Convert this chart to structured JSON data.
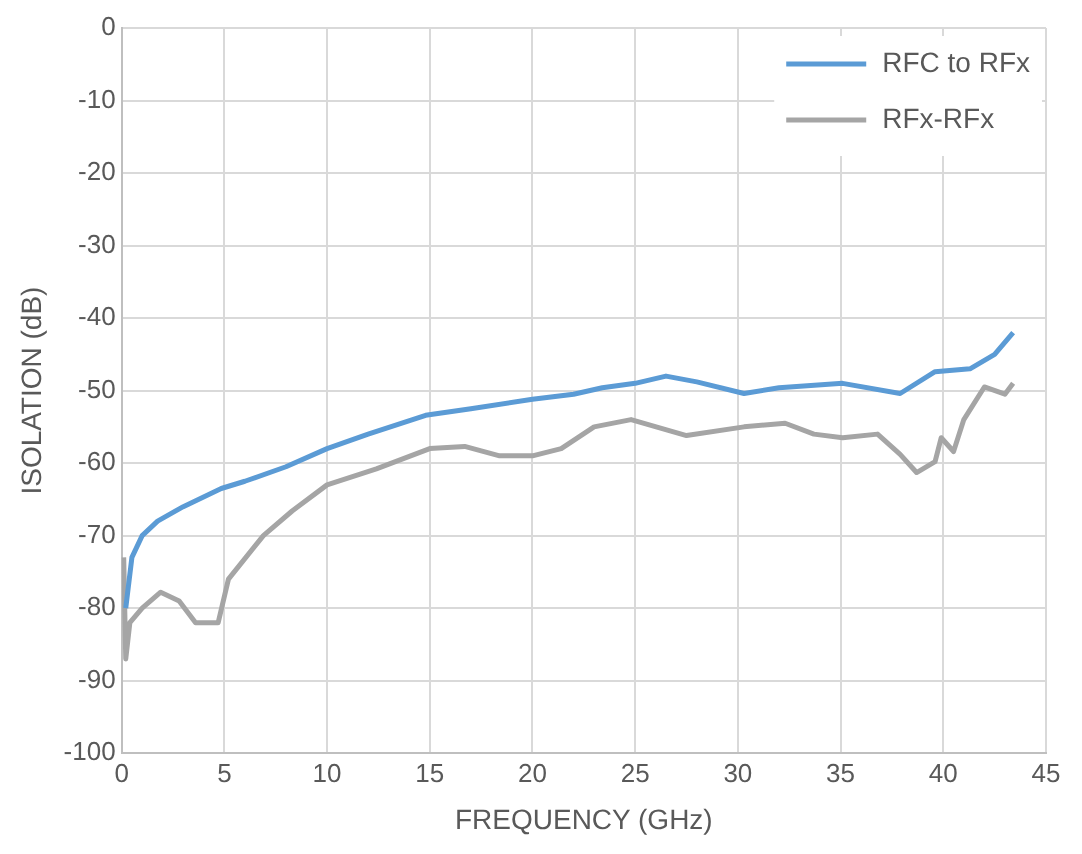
{
  "chart_data": {
    "type": "line",
    "xlabel": "FREQUENCY (GHz)",
    "ylabel": "ISOLATION (dB)",
    "xlim": [
      0,
      45
    ],
    "xticks": [
      0,
      5,
      10,
      15,
      20,
      25,
      30,
      35,
      40,
      45
    ],
    "ylim": [
      -100,
      0
    ],
    "yticks": [
      -100,
      -90,
      -80,
      -70,
      -60,
      -50,
      -40,
      -30,
      -20,
      -10,
      0
    ],
    "grid": true,
    "legend": "top right",
    "line_style": "solid",
    "marker": "none",
    "series": [
      {
        "name": "RFC to RFx",
        "color": "#5b9bd5",
        "x": [
          0.2,
          0.5,
          1,
          1.75,
          3,
          4.85,
          6,
          8,
          10,
          12,
          14.8,
          17,
          20,
          22,
          23.4,
          25,
          26.5,
          28,
          30.3,
          32,
          35.1,
          37.9,
          39.6,
          41.3,
          42.5,
          43.4
        ],
        "values": [
          -80,
          -73,
          -70,
          -68,
          -66,
          -63.5,
          -62.5,
          -60.5,
          -58,
          -56,
          -53.4,
          -52.5,
          -51.2,
          -50.5,
          -49.6,
          -49,
          -48,
          -48.8,
          -50.4,
          -49.6,
          -49,
          -50.4,
          -47.4,
          -47,
          -45,
          -42
        ]
      },
      {
        "name": "RFx-RFx",
        "color": "#a5a5a5",
        "x": [
          0.1,
          0.2,
          0.4,
          1,
          1.9,
          2.8,
          3.6,
          4.7,
          5.2,
          6.9,
          8.3,
          10,
          12.4,
          15,
          16.7,
          18.4,
          20,
          21.4,
          23,
          24.8,
          27.5,
          30.3,
          32.3,
          33.7,
          35.1,
          36.8,
          37.9,
          38.7,
          39.6,
          39.9,
          40.5,
          41,
          42,
          43,
          43.4
        ],
        "values": [
          -73,
          -87,
          -82,
          -80,
          -77.8,
          -79,
          -82,
          -82,
          -76,
          -70,
          -66.6,
          -63,
          -60.8,
          -58,
          -57.7,
          -59,
          -59,
          -58,
          -55,
          -54,
          -56.2,
          -55,
          -54.5,
          -56,
          -56.5,
          -56,
          -58.8,
          -61.3,
          -59.8,
          -56.5,
          -58.4,
          -54,
          -49.5,
          -50.5,
          -49
        ]
      }
    ]
  }
}
